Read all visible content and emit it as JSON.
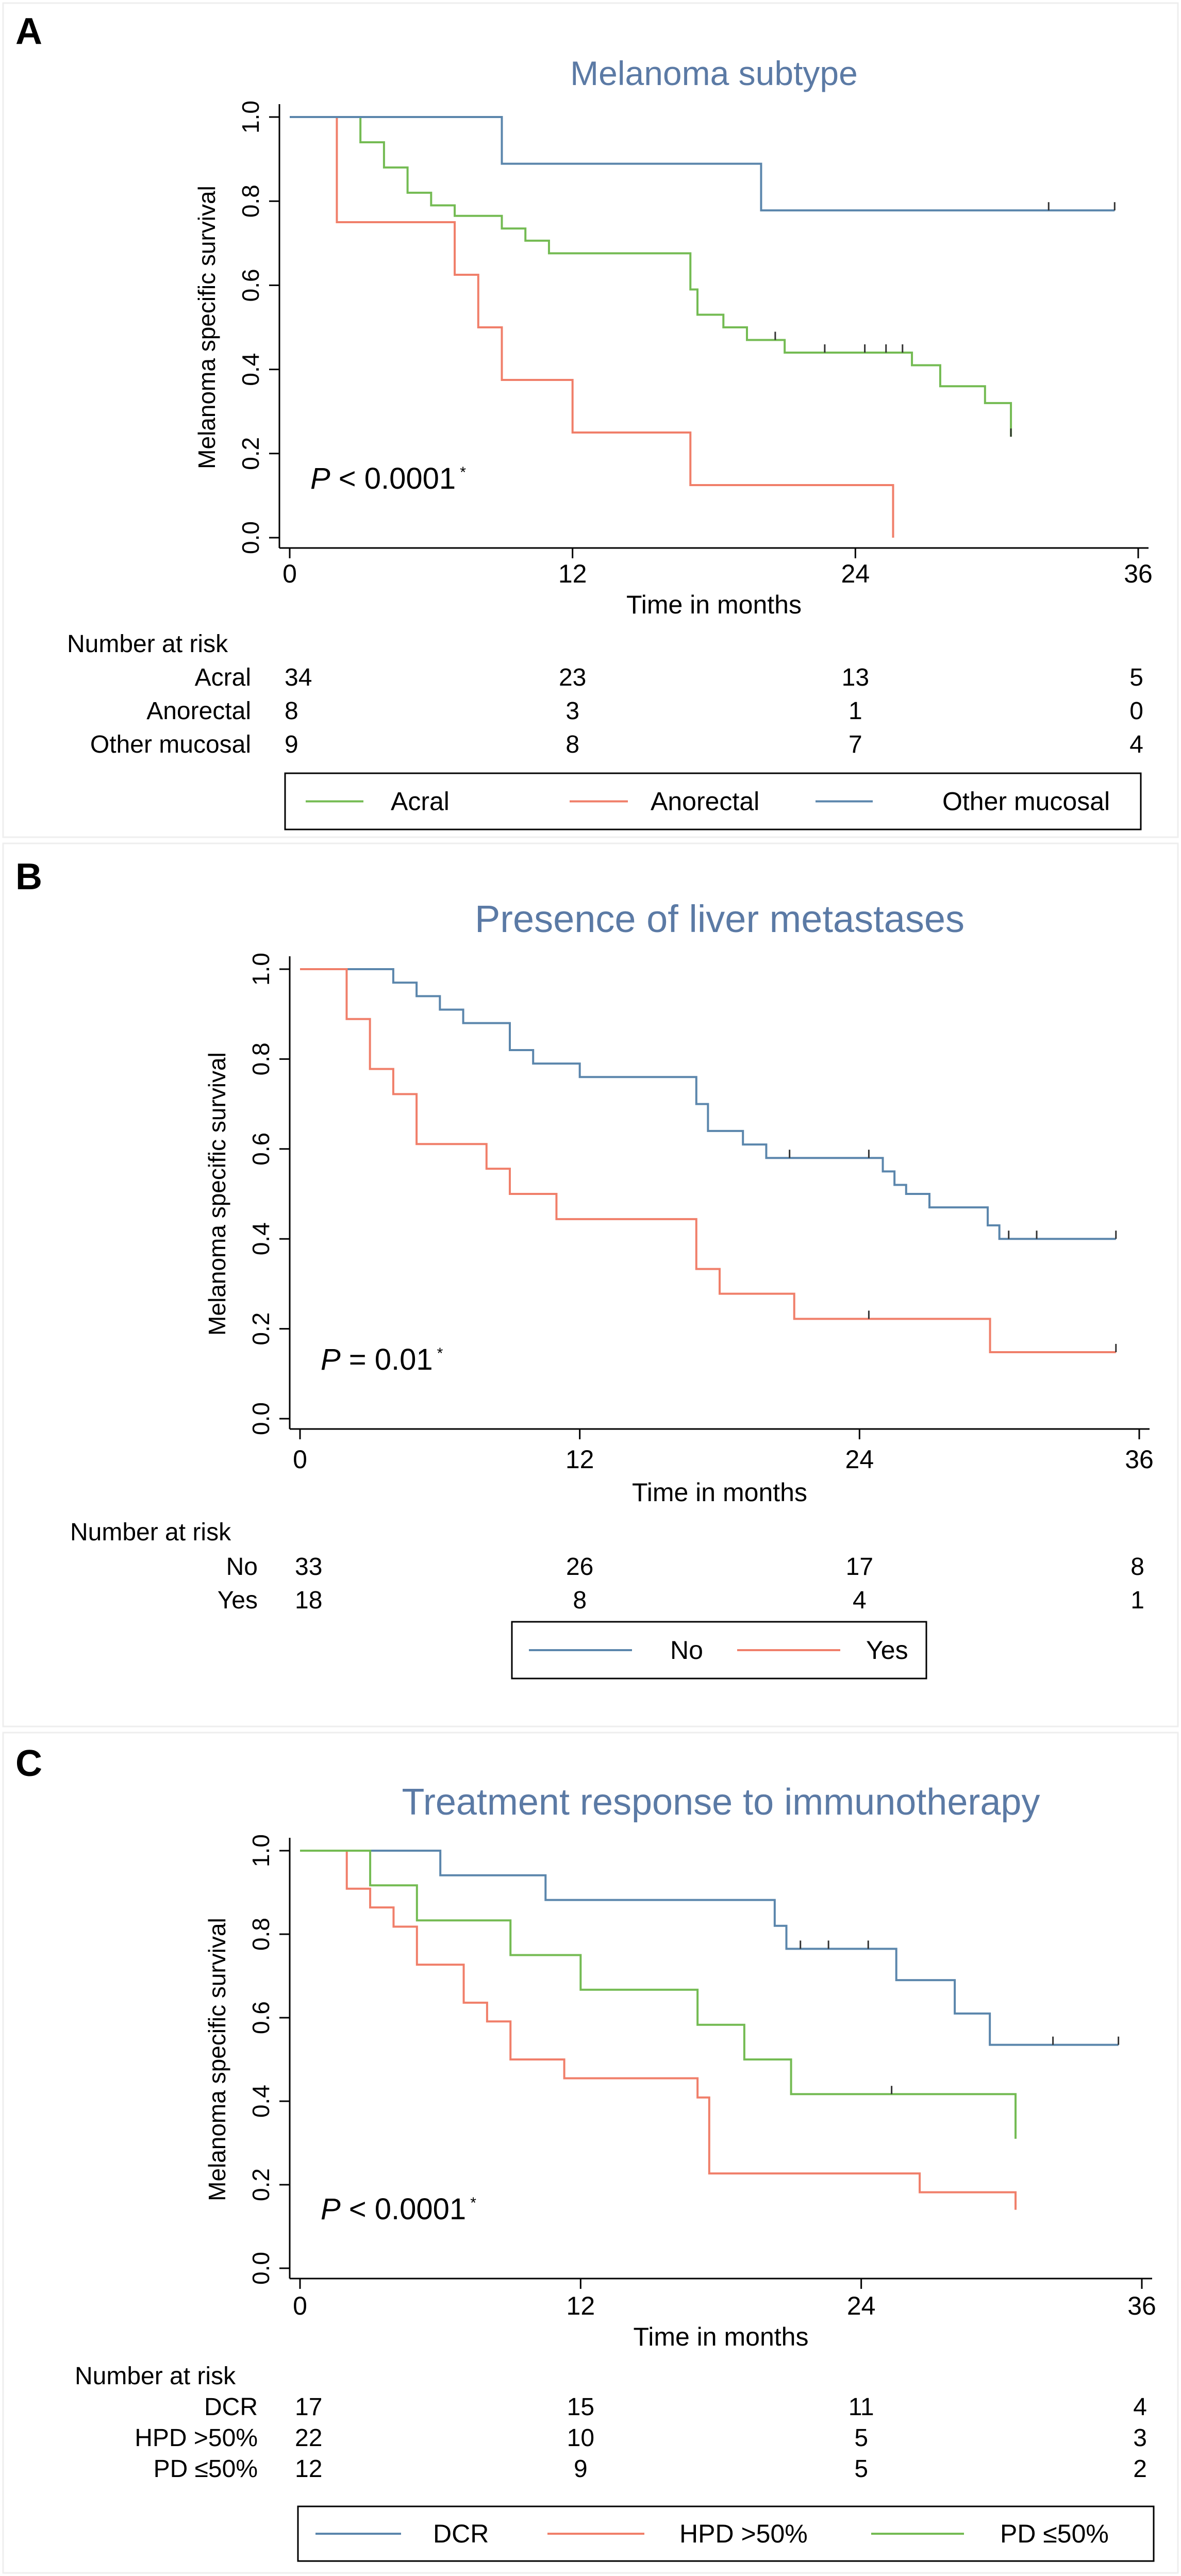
{
  "figure": {
    "panel_border_color": "#eeeeee",
    "axis_color": "#000000",
    "title_color": "#5b7aa5",
    "text_color": "#000000"
  },
  "chart_data": [
    {
      "type": "line",
      "step": true,
      "panel_label": "A",
      "title": "Melanoma subtype",
      "xlabel": "Time in months",
      "ylabel": "Melanoma specific survival",
      "xlim": [
        0,
        36
      ],
      "ylim": [
        0,
        1
      ],
      "xticks": [
        0,
        12,
        24,
        36
      ],
      "yticks": [
        0.0,
        0.2,
        0.4,
        0.6,
        0.8,
        1.0
      ],
      "xtick_labels": [
        "0",
        "12",
        "24",
        "36"
      ],
      "ytick_labels": [
        "0.0",
        "0.2",
        "0.4",
        "0.6",
        "0.8",
        "1.0"
      ],
      "p_value": {
        "prefix": "P",
        "text": " < 0.0001",
        "marker": "*"
      },
      "risk_table": {
        "header": "Number at risk",
        "rows": [
          {
            "label": "Acral",
            "values": [
              "34",
              "23",
              "13",
              "5"
            ]
          },
          {
            "label": "Anorectal",
            "values": [
              "8",
              "3",
              "1",
              "0"
            ]
          },
          {
            "label": "Other mucosal",
            "values": [
              "9",
              "8",
              "7",
              "4"
            ]
          }
        ]
      },
      "series": [
        {
          "name": "Acral",
          "color": "#74bb53",
          "steps": [
            [
              0,
              1.0
            ],
            [
              3,
              0.94
            ],
            [
              4,
              0.88
            ],
            [
              5,
              0.82
            ],
            [
              6,
              0.79
            ],
            [
              7,
              0.765
            ],
            [
              9,
              0.735
            ],
            [
              10,
              0.706
            ],
            [
              11,
              0.676
            ],
            [
              17,
              0.59
            ],
            [
              17.3,
              0.53
            ],
            [
              18.4,
              0.5
            ],
            [
              19.4,
              0.47
            ],
            [
              21,
              0.44
            ],
            [
              26.4,
              0.41
            ],
            [
              27.6,
              0.36
            ],
            [
              29.5,
              0.32
            ],
            [
              30.6,
              0.24
            ]
          ],
          "end": 30.6,
          "censors": [
            [
              20.6,
              0.47
            ],
            [
              22.7,
              0.44
            ],
            [
              24.4,
              0.44
            ],
            [
              25.3,
              0.44
            ],
            [
              26,
              0.44
            ],
            [
              30.6,
              0.24
            ]
          ]
        },
        {
          "name": "Anorectal",
          "color": "#f07f6a",
          "steps": [
            [
              0,
              1.0
            ],
            [
              2,
              0.75
            ],
            [
              7,
              0.625
            ],
            [
              8,
              0.5
            ],
            [
              9,
              0.375
            ],
            [
              12,
              0.25
            ],
            [
              17,
              0.125
            ],
            [
              25.6,
              0.0
            ]
          ],
          "end": 25.6,
          "censors": []
        },
        {
          "name": "Other mucosal",
          "color": "#5b86ac",
          "steps": [
            [
              0,
              1.0
            ],
            [
              9,
              0.889
            ],
            [
              20,
              0.778
            ]
          ],
          "end": 35,
          "censors": [
            [
              32.2,
              0.778
            ],
            [
              35,
              0.778
            ]
          ]
        }
      ]
    },
    {
      "type": "line",
      "step": true,
      "panel_label": "B",
      "title": "Presence of liver metastases",
      "xlabel": "Time in months",
      "ylabel": "Melanoma specific survival",
      "xlim": [
        0,
        36
      ],
      "ylim": [
        0,
        1
      ],
      "xticks": [
        0,
        12,
        24,
        36
      ],
      "yticks": [
        0.0,
        0.2,
        0.4,
        0.6,
        0.8,
        1.0
      ],
      "xtick_labels": [
        "0",
        "12",
        "24",
        "36"
      ],
      "ytick_labels": [
        "0.0",
        "0.2",
        "0.4",
        "0.6",
        "0.8",
        "1.0"
      ],
      "p_value": {
        "prefix": "P",
        "text": " = 0.01",
        "marker": "*"
      },
      "risk_table": {
        "header": "Number at risk",
        "rows": [
          {
            "label": "No",
            "values": [
              "33",
              "26",
              "17",
              "8"
            ]
          },
          {
            "label": "Yes",
            "values": [
              "18",
              "8",
              "4",
              "1"
            ]
          }
        ]
      },
      "series": [
        {
          "name": "No",
          "color": "#5b86ac",
          "steps": [
            [
              0,
              1.0
            ],
            [
              4,
              0.97
            ],
            [
              5,
              0.94
            ],
            [
              6,
              0.91
            ],
            [
              7,
              0.88
            ],
            [
              9,
              0.82
            ],
            [
              10,
              0.79
            ],
            [
              12,
              0.76
            ],
            [
              17,
              0.7
            ],
            [
              17.5,
              0.64
            ],
            [
              19,
              0.61
            ],
            [
              20,
              0.58
            ],
            [
              25,
              0.55
            ],
            [
              25.5,
              0.52
            ],
            [
              26,
              0.5
            ],
            [
              27,
              0.47
            ],
            [
              29.5,
              0.43
            ],
            [
              30,
              0.4
            ]
          ],
          "end": 35,
          "censors": [
            [
              21,
              0.58
            ],
            [
              24.4,
              0.58
            ],
            [
              30.4,
              0.4
            ],
            [
              31.6,
              0.4
            ],
            [
              35,
              0.4
            ]
          ]
        },
        {
          "name": "Yes",
          "color": "#f07f6a",
          "steps": [
            [
              0,
              1.0
            ],
            [
              2,
              0.889
            ],
            [
              3,
              0.778
            ],
            [
              4,
              0.722
            ],
            [
              5,
              0.611
            ],
            [
              8,
              0.556
            ],
            [
              9,
              0.5
            ],
            [
              11,
              0.444
            ],
            [
              17,
              0.333
            ],
            [
              18,
              0.278
            ],
            [
              21.2,
              0.222
            ],
            [
              29.6,
              0.148
            ]
          ],
          "end": 35,
          "censors": [
            [
              24.4,
              0.222
            ],
            [
              35,
              0.148
            ]
          ]
        }
      ]
    },
    {
      "type": "line",
      "step": true,
      "panel_label": "C",
      "title": "Treatment response to immunotherapy",
      "xlabel": "Time in months",
      "ylabel": "Melanoma specific survival",
      "xlim": [
        0,
        36
      ],
      "ylim": [
        0,
        1
      ],
      "xticks": [
        0,
        12,
        24,
        36
      ],
      "yticks": [
        0.0,
        0.2,
        0.4,
        0.6,
        0.8,
        1.0
      ],
      "xtick_labels": [
        "0",
        "12",
        "24",
        "36"
      ],
      "ytick_labels": [
        "0.0",
        "0.2",
        "0.4",
        "0.6",
        "0.8",
        "1.0"
      ],
      "p_value": {
        "prefix": "P",
        "text": " < 0.0001",
        "marker": "*"
      },
      "risk_table": {
        "header": "Number at risk",
        "rows": [
          {
            "label": "DCR",
            "values": [
              "17",
              "15",
              "11",
              "4"
            ]
          },
          {
            "label": "HPD >50%",
            "values": [
              "22",
              "10",
              "5",
              "3"
            ]
          },
          {
            "label": "PD ≤50%",
            "values": [
              "12",
              "9",
              "5",
              "2"
            ]
          }
        ]
      },
      "series": [
        {
          "name": "DCR",
          "color": "#5b86ac",
          "steps": [
            [
              0,
              1.0
            ],
            [
              6,
              0.941
            ],
            [
              10.5,
              0.882
            ],
            [
              20.3,
              0.82
            ],
            [
              20.8,
              0.765
            ],
            [
              25.5,
              0.69
            ],
            [
              28,
              0.61
            ],
            [
              29.5,
              0.535
            ]
          ],
          "end": 35,
          "censors": [
            [
              21.4,
              0.765
            ],
            [
              22.6,
              0.765
            ],
            [
              24.3,
              0.765
            ],
            [
              32.2,
              0.535
            ],
            [
              35,
              0.535
            ]
          ]
        },
        {
          "name": "HPD >50%",
          "color": "#f07f6a",
          "steps": [
            [
              0,
              1.0
            ],
            [
              2,
              0.909
            ],
            [
              3,
              0.864
            ],
            [
              4,
              0.818
            ],
            [
              5,
              0.727
            ],
            [
              7,
              0.636
            ],
            [
              8,
              0.591
            ],
            [
              9,
              0.5
            ],
            [
              11.3,
              0.455
            ],
            [
              17,
              0.409
            ],
            [
              17.5,
              0.227
            ],
            [
              26.5,
              0.182
            ],
            [
              30.6,
              0.14
            ]
          ],
          "end": 30.6,
          "censors": []
        },
        {
          "name": "PD ≤50%",
          "color": "#74bb53",
          "steps": [
            [
              0,
              1.0
            ],
            [
              3,
              0.917
            ],
            [
              5,
              0.833
            ],
            [
              9,
              0.75
            ],
            [
              12,
              0.667
            ],
            [
              17,
              0.583
            ],
            [
              19,
              0.5
            ],
            [
              21,
              0.417
            ],
            [
              30.6,
              0.31
            ]
          ],
          "end": 30.6,
          "censors": [
            [
              25.3,
              0.417
            ]
          ]
        }
      ]
    }
  ]
}
